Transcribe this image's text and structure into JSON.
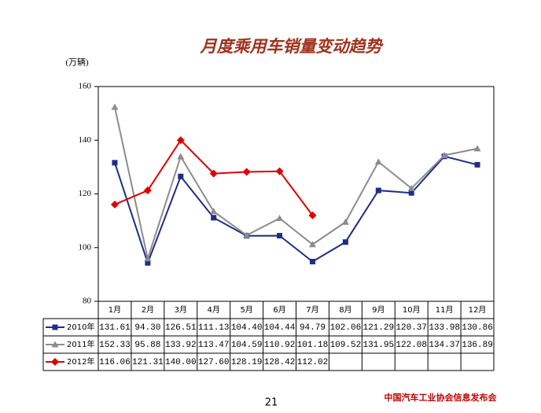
{
  "chart_data": {
    "type": "line",
    "title": "月度乘用车销量变动趋势",
    "unit_label": "(万辆)",
    "page_number": "21",
    "footer": "中国汽车工业协会信息发布会",
    "categories": [
      "1月",
      "2月",
      "3月",
      "4月",
      "5月",
      "6月",
      "7月",
      "8月",
      "9月",
      "10月",
      "11月",
      "12月"
    ],
    "ylim": [
      80,
      160
    ],
    "yticks": [
      80,
      100,
      120,
      140,
      160
    ],
    "series": [
      {
        "name": "2010年",
        "color": "#1f2d8a",
        "marker": "square",
        "values": [
          131.61,
          94.3,
          126.51,
          111.13,
          104.4,
          104.44,
          94.79,
          102.06,
          121.29,
          120.37,
          133.98,
          130.86
        ],
        "value_labels": [
          "131.61",
          "94.30",
          "126.51",
          "111.13",
          "104.40",
          "104.44",
          "94.79",
          "102.06",
          "121.29",
          "120.37",
          "133.98",
          "130.86"
        ]
      },
      {
        "name": "2011年",
        "color": "#8c8c8c",
        "marker": "triangle",
        "values": [
          152.33,
          95.88,
          133.92,
          113.47,
          104.59,
          110.92,
          101.18,
          109.52,
          131.95,
          122.08,
          134.37,
          136.89
        ],
        "value_labels": [
          "152.33",
          "95.88",
          "133.92",
          "113.47",
          "104.59",
          "110.92",
          "101.18",
          "109.52",
          "131.95",
          "122.08",
          "134.37",
          "136.89"
        ]
      },
      {
        "name": "2012年",
        "color": "#e00000",
        "marker": "diamond",
        "values": [
          116.06,
          121.31,
          140,
          127.6,
          128.19,
          128.42,
          112.02,
          null,
          null,
          null,
          null,
          null
        ],
        "value_labels": [
          "116.06",
          "121.31",
          "140.00",
          "127.60",
          "128.19",
          "128.42",
          "112.02",
          null,
          null,
          null,
          null,
          null
        ]
      }
    ]
  }
}
